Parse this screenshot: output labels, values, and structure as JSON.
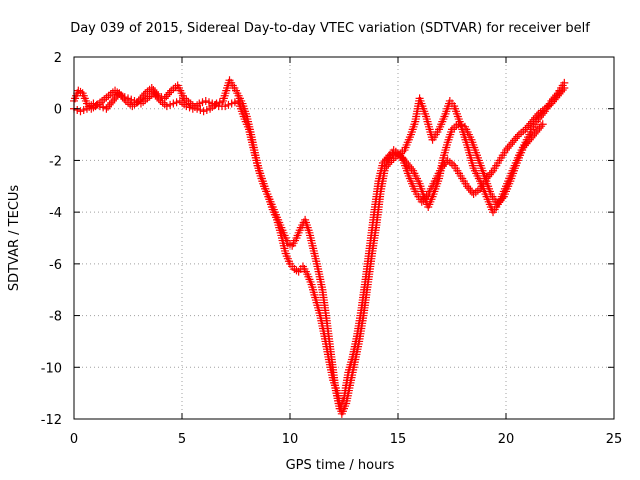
{
  "chart_data": {
    "type": "scatter",
    "title": "Day 039 of 2015, Sidereal Day-to-day VTEC variation (SDTVAR) for receiver belf",
    "xlabel": "GPS time / hours",
    "ylabel": "SDTVAR / TECUs",
    "xlim": [
      0,
      25
    ],
    "ylim": [
      -12,
      2
    ],
    "x_ticks": [
      0,
      5,
      10,
      15,
      20,
      25
    ],
    "y_ticks": [
      2,
      0,
      -2,
      -4,
      -6,
      -8,
      -10,
      -12
    ],
    "x_tick_labels": [
      "0",
      "5",
      "10",
      "15",
      "20",
      "25"
    ],
    "y_tick_labels": [
      "2",
      "0",
      "-2",
      "-4",
      "-6",
      "-8",
      "-10",
      "-12"
    ],
    "grid": true,
    "marker": "+",
    "color": "#ff0000",
    "series": [
      {
        "points": [
          [
            0.0,
            0.3
          ],
          [
            0.2,
            0.7
          ],
          [
            0.4,
            0.6
          ],
          [
            0.6,
            0.2
          ],
          [
            0.8,
            0.0
          ],
          [
            1.0,
            0.1
          ],
          [
            1.3,
            0.3
          ],
          [
            1.6,
            0.5
          ],
          [
            1.9,
            0.7
          ],
          [
            2.2,
            0.5
          ],
          [
            2.5,
            0.4
          ],
          [
            2.8,
            0.3
          ],
          [
            3.1,
            0.2
          ],
          [
            3.4,
            0.4
          ],
          [
            3.7,
            0.6
          ],
          [
            4.0,
            0.3
          ],
          [
            4.3,
            0.1
          ],
          [
            4.6,
            0.2
          ],
          [
            4.9,
            0.3
          ],
          [
            5.2,
            0.1
          ],
          [
            5.5,
            0.0
          ],
          [
            5.8,
            0.2
          ],
          [
            6.1,
            0.3
          ],
          [
            6.4,
            0.2
          ],
          [
            6.7,
            0.1
          ],
          [
            7.0,
            0.1
          ],
          [
            7.3,
            0.2
          ],
          [
            7.6,
            0.3
          ],
          [
            7.9,
            -0.4
          ],
          [
            8.1,
            -0.8
          ],
          [
            8.3,
            -1.5
          ],
          [
            8.5,
            -2.2
          ],
          [
            8.7,
            -2.7
          ],
          [
            8.9,
            -3.2
          ],
          [
            9.1,
            -3.6
          ],
          [
            9.3,
            -4.0
          ],
          [
            9.5,
            -4.4
          ],
          [
            9.7,
            -4.8
          ],
          [
            9.9,
            -5.2
          ],
          [
            10.1,
            -5.3
          ],
          [
            10.3,
            -5.0
          ],
          [
            10.5,
            -4.6
          ],
          [
            10.7,
            -4.3
          ],
          [
            10.9,
            -4.8
          ],
          [
            11.1,
            -5.5
          ],
          [
            11.3,
            -6.2
          ],
          [
            11.5,
            -7.0
          ],
          [
            11.7,
            -8.2
          ],
          [
            11.9,
            -9.5
          ],
          [
            12.1,
            -10.8
          ],
          [
            12.3,
            -11.6
          ],
          [
            12.5,
            -11.2
          ],
          [
            12.7,
            -10.2
          ],
          [
            12.9,
            -9.6
          ],
          [
            13.1,
            -8.8
          ],
          [
            13.3,
            -7.8
          ],
          [
            13.5,
            -6.6
          ],
          [
            13.7,
            -5.3
          ],
          [
            13.9,
            -4.0
          ],
          [
            14.1,
            -2.8
          ],
          [
            14.3,
            -2.1
          ],
          [
            14.6,
            -1.8
          ],
          [
            14.9,
            -1.7
          ],
          [
            15.2,
            -1.9
          ],
          [
            15.5,
            -2.6
          ],
          [
            15.8,
            -3.2
          ],
          [
            16.1,
            -3.6
          ],
          [
            16.4,
            -3.3
          ],
          [
            16.7,
            -2.8
          ],
          [
            17.0,
            -2.3
          ],
          [
            17.3,
            -2.0
          ],
          [
            17.6,
            -2.2
          ],
          [
            17.9,
            -2.6
          ],
          [
            18.2,
            -3.0
          ],
          [
            18.5,
            -3.3
          ],
          [
            18.8,
            -3.1
          ],
          [
            19.1,
            -2.7
          ],
          [
            19.4,
            -2.4
          ],
          [
            19.7,
            -2.0
          ],
          [
            20.0,
            -1.6
          ],
          [
            20.3,
            -1.3
          ],
          [
            20.6,
            -1.0
          ],
          [
            20.9,
            -0.8
          ],
          [
            21.2,
            -0.5
          ],
          [
            21.5,
            -0.2
          ],
          [
            21.8,
            0.0
          ],
          [
            22.1,
            0.2
          ],
          [
            22.4,
            0.5
          ],
          [
            22.7,
            0.8
          ]
        ]
      },
      {
        "points": [
          [
            0.0,
            0.0
          ],
          [
            0.3,
            -0.1
          ],
          [
            0.6,
            0.0
          ],
          [
            0.9,
            0.2
          ],
          [
            1.2,
            0.1
          ],
          [
            1.5,
            0.0
          ],
          [
            1.8,
            0.3
          ],
          [
            2.1,
            0.6
          ],
          [
            2.4,
            0.3
          ],
          [
            2.7,
            0.1
          ],
          [
            3.0,
            0.3
          ],
          [
            3.3,
            0.6
          ],
          [
            3.6,
            0.8
          ],
          [
            3.9,
            0.5
          ],
          [
            4.2,
            0.4
          ],
          [
            4.5,
            0.7
          ],
          [
            4.8,
            0.9
          ],
          [
            5.1,
            0.4
          ],
          [
            5.4,
            0.2
          ],
          [
            5.7,
            0.0
          ],
          [
            6.0,
            -0.1
          ],
          [
            6.3,
            0.0
          ],
          [
            6.6,
            0.2
          ],
          [
            6.9,
            0.3
          ],
          [
            7.2,
            1.1
          ],
          [
            7.5,
            0.7
          ],
          [
            7.8,
            0.2
          ],
          [
            8.0,
            -0.3
          ],
          [
            8.2,
            -1.0
          ],
          [
            8.4,
            -1.8
          ],
          [
            8.6,
            -2.5
          ],
          [
            8.8,
            -3.0
          ],
          [
            9.0,
            -3.4
          ],
          [
            9.2,
            -3.9
          ],
          [
            9.4,
            -4.3
          ],
          [
            9.6,
            -4.9
          ],
          [
            9.8,
            -5.6
          ],
          [
            10.0,
            -6.0
          ],
          [
            10.2,
            -6.2
          ],
          [
            10.4,
            -6.3
          ],
          [
            10.6,
            -6.1
          ],
          [
            10.8,
            -6.4
          ],
          [
            11.0,
            -6.8
          ],
          [
            11.2,
            -7.4
          ],
          [
            11.4,
            -8.0
          ],
          [
            11.6,
            -8.8
          ],
          [
            11.8,
            -9.7
          ],
          [
            12.0,
            -10.5
          ],
          [
            12.2,
            -11.0
          ],
          [
            12.4,
            -11.8
          ],
          [
            12.6,
            -11.4
          ],
          [
            12.8,
            -10.6
          ],
          [
            13.0,
            -9.8
          ],
          [
            13.2,
            -9.0
          ],
          [
            13.4,
            -8.0
          ],
          [
            13.6,
            -6.8
          ],
          [
            13.8,
            -5.6
          ],
          [
            14.0,
            -4.5
          ],
          [
            14.2,
            -3.2
          ],
          [
            14.4,
            -2.3
          ],
          [
            14.7,
            -2.0
          ],
          [
            15.0,
            -1.8
          ],
          [
            15.3,
            -1.6
          ],
          [
            15.6,
            -1.0
          ],
          [
            15.8,
            -0.5
          ],
          [
            16.0,
            0.4
          ],
          [
            16.3,
            -0.3
          ],
          [
            16.6,
            -1.2
          ],
          [
            16.9,
            -0.8
          ],
          [
            17.2,
            -0.2
          ],
          [
            17.4,
            0.3
          ],
          [
            17.6,
            0.1
          ],
          [
            17.9,
            -0.6
          ],
          [
            18.2,
            -1.4
          ],
          [
            18.5,
            -2.3
          ],
          [
            18.8,
            -2.8
          ],
          [
            19.1,
            -3.4
          ],
          [
            19.4,
            -4.0
          ],
          [
            19.7,
            -3.6
          ],
          [
            20.0,
            -3.0
          ],
          [
            20.3,
            -2.4
          ],
          [
            20.6,
            -1.8
          ],
          [
            20.9,
            -1.3
          ],
          [
            21.2,
            -0.8
          ],
          [
            21.5,
            -0.4
          ],
          [
            21.8,
            -0.1
          ],
          [
            22.1,
            0.3
          ],
          [
            22.4,
            0.6
          ],
          [
            22.7,
            1.0
          ]
        ]
      },
      {
        "points": [
          [
            14.5,
            -2.0
          ],
          [
            14.8,
            -1.6
          ],
          [
            15.1,
            -1.8
          ],
          [
            15.4,
            -2.1
          ],
          [
            15.7,
            -2.4
          ],
          [
            16.0,
            -2.9
          ],
          [
            16.2,
            -3.4
          ],
          [
            16.4,
            -3.8
          ],
          [
            16.6,
            -3.4
          ],
          [
            16.9,
            -2.7
          ],
          [
            17.1,
            -1.9
          ],
          [
            17.3,
            -1.3
          ],
          [
            17.5,
            -0.8
          ],
          [
            17.8,
            -0.6
          ],
          [
            18.1,
            -0.7
          ],
          [
            18.4,
            -1.2
          ],
          [
            18.7,
            -1.9
          ],
          [
            19.0,
            -2.6
          ],
          [
            19.3,
            -3.3
          ],
          [
            19.6,
            -3.7
          ],
          [
            19.9,
            -3.4
          ],
          [
            20.2,
            -2.8
          ],
          [
            20.5,
            -2.1
          ],
          [
            20.8,
            -1.5
          ],
          [
            21.1,
            -1.2
          ],
          [
            21.4,
            -0.9
          ],
          [
            21.7,
            -0.6
          ]
        ]
      }
    ]
  }
}
